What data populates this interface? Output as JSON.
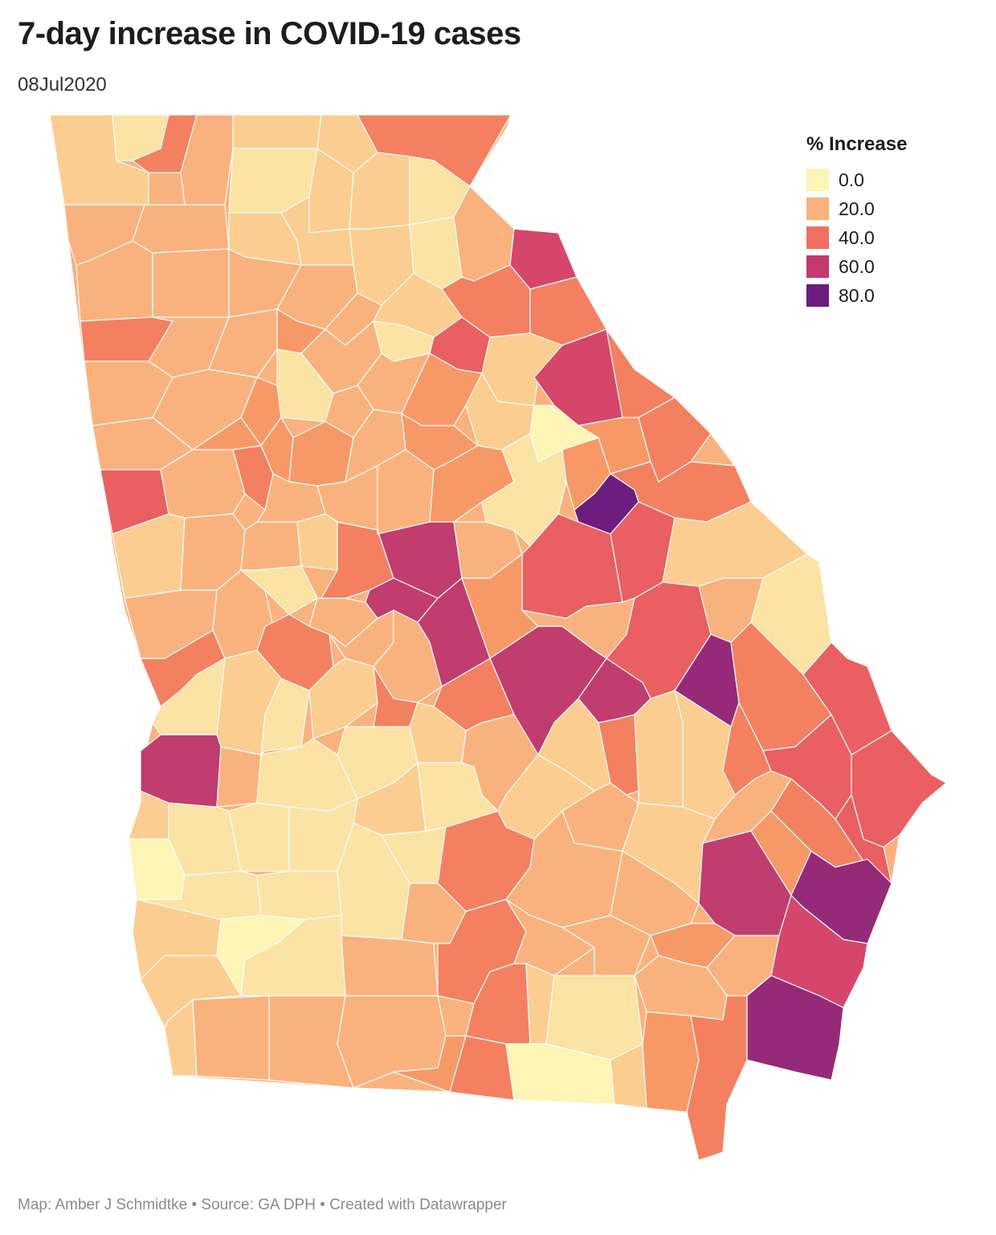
{
  "header": {
    "title": "7-day increase in COVID-19 cases",
    "subtitle": "08Jul2020"
  },
  "legend": {
    "title": "% Increase",
    "items": [
      {
        "label": "0.0",
        "color": "#fcf5b6"
      },
      {
        "label": "20.0",
        "color": "#f9b27e"
      },
      {
        "label": "40.0",
        "color": "#ef7062"
      },
      {
        "label": "60.0",
        "color": "#c53a6e"
      },
      {
        "label": "80.0",
        "color": "#6c1d7e"
      }
    ]
  },
  "colors": {
    "c0": "#fcf5b6",
    "c1": "#fbe2a5",
    "c2": "#fbcd91",
    "c3": "#f9b27e",
    "c4": "#f79966",
    "c5": "#f48062",
    "c6": "#ea5f62",
    "c7": "#d5466a",
    "c8": "#c13c6f",
    "c9": "#952a79",
    "c10": "#6c1d7e"
  },
  "footer": {
    "text": "Map: Amber J Schmidtke • Source: GA DPH • Created with Datawrapper"
  }
}
